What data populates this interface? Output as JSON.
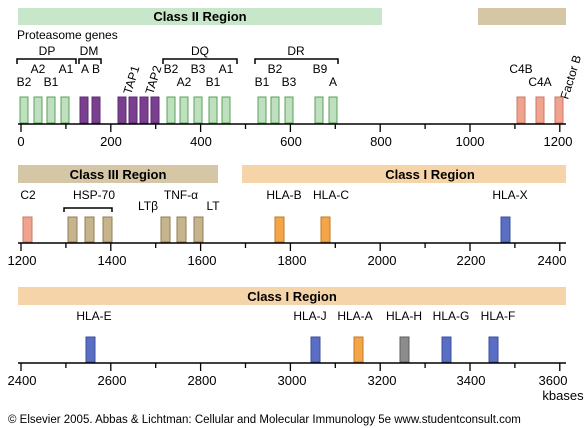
{
  "colors": {
    "green": "#bfe0bf",
    "green_stroke": "#5aa05a",
    "purple": "#7a3f8f",
    "khaki": "#d5c6a6",
    "peach": "#f6d4a9",
    "salmon": "#f0a48f",
    "orange": "#f4a548",
    "blue": "#5a6fc4",
    "gray": "#8c8c8c",
    "tan_gene": "#c7b48c"
  },
  "region_labels": {
    "class2": "Class II Region",
    "class3": "Class III Region",
    "class1_row2": "Class I Region",
    "class1_row3": "Class I Region"
  },
  "row1": {
    "proteasome_label": "Proteasome genes",
    "group_labels": [
      "DP",
      "DM",
      "DQ",
      "DR"
    ],
    "genes": [
      "B2",
      "A2",
      "B1",
      "A1",
      "A",
      "B",
      "TAP1",
      "TAP2",
      "B2",
      "A2",
      "B3",
      "B1",
      "A1",
      "B2",
      "B1",
      "B3",
      "B9",
      "A",
      "C4B",
      "C4A",
      "Factor B"
    ],
    "ticks": [
      "0",
      "200",
      "400",
      "600",
      "800",
      "1000",
      "1200"
    ]
  },
  "row2": {
    "genes": [
      "C2",
      "HSP-70",
      "LTβ",
      "TNF-α",
      "LT",
      "HLA-B",
      "HLA-C",
      "HLA-X"
    ],
    "ticks": [
      "1200",
      "1400",
      "1600",
      "1800",
      "2000",
      "2200",
      "2400"
    ]
  },
  "row3": {
    "genes": [
      "HLA-E",
      "HLA-J",
      "HLA-A",
      "HLA-H",
      "HLA-G",
      "HLA-F"
    ],
    "ticks": [
      "2400",
      "2600",
      "2800",
      "3000",
      "3200",
      "3400",
      "3600"
    ],
    "unit": "kbases"
  },
  "footer": "© Elsevier 2005. Abbas & Lichtman: Cellular and Molecular Immunology 5e www.studentconsult.com"
}
